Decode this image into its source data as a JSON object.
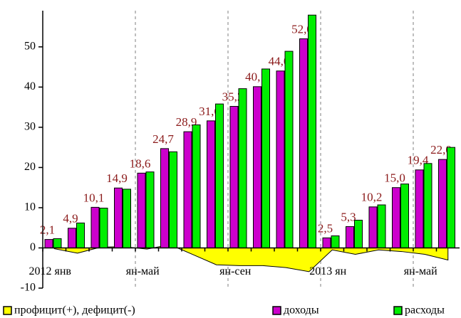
{
  "chart_data": {
    "type": "bar",
    "categories": [
      "2012 янв",
      null,
      null,
      null,
      "ян-май",
      null,
      null,
      null,
      "ян-сен",
      null,
      null,
      null,
      "2013 ян",
      null,
      null,
      null,
      "ян-май",
      null
    ],
    "series": [
      {
        "name": "профицит(+), дефицит(-)",
        "color": "#ffff00",
        "kind": "area",
        "values": [
          -0.2,
          -1.3,
          0.2,
          0.3,
          -0.3,
          0.8,
          -1.7,
          -4.2,
          -4.4,
          -4.4,
          -4.9,
          -5.9,
          -0.5,
          -1.6,
          -0.5,
          -0.9,
          -1.6,
          -3.0
        ]
      },
      {
        "name": "доходы",
        "color": "#cc00cc",
        "kind": "bar",
        "values": [
          2.1,
          4.9,
          10.1,
          14.9,
          18.6,
          24.7,
          28.9,
          31.6,
          35.2,
          40.1,
          44.0,
          52.0,
          2.5,
          5.3,
          10.2,
          15.0,
          19.4,
          22.0
        ],
        "value_labels": [
          "2,1",
          "4,9",
          "10,1",
          "14,9",
          "18,6",
          "24,7",
          "28,9",
          "31,6",
          "35,2",
          "40,1",
          "44,0",
          "52,0",
          "2,5",
          "5,3",
          "10,2",
          "15,0",
          "19,4",
          "22,0"
        ]
      },
      {
        "name": "расходы",
        "color": "#00ee00",
        "kind": "bar",
        "values": [
          2.3,
          6.2,
          9.9,
          14.6,
          18.9,
          23.9,
          30.6,
          35.8,
          39.6,
          44.5,
          48.9,
          57.9,
          3.0,
          6.9,
          10.7,
          15.9,
          21.0,
          25.0
        ]
      }
    ],
    "ylim": [
      -10,
      59
    ],
    "yticks": [
      -10,
      0,
      10,
      20,
      30,
      40,
      50
    ]
  }
}
